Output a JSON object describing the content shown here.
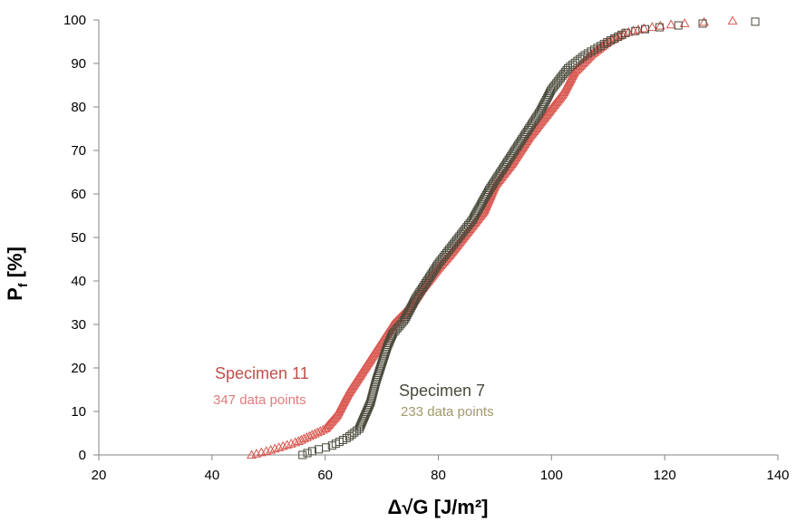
{
  "chart_data": {
    "type": "scatter",
    "xlabel": "Δ√G [J/m²]",
    "ylabel_main": "P",
    "ylabel_sub": "f",
    "ylabel_rest": " [%]",
    "xlim": [
      20,
      140
    ],
    "ylim": [
      0,
      100
    ],
    "xticks": [
      20,
      40,
      60,
      80,
      100,
      120,
      140
    ],
    "yticks": [
      0,
      10,
      20,
      30,
      40,
      50,
      60,
      70,
      80,
      90,
      100
    ],
    "grid": false,
    "legend": "none",
    "annotations": [
      {
        "name": "Specimen 11",
        "count": "347 data points",
        "name_color": "#c0504d",
        "count_color": "#e07c7c"
      },
      {
        "name": "Specimen 7",
        "count": "233 data points",
        "name_color": "#4a4a3c",
        "count_color": "#a09a6a"
      }
    ],
    "series": [
      {
        "label": "Specimen 11",
        "marker": "triangle",
        "color": "#d9574f",
        "n_points": 347,
        "cdf_anchors": [
          [
            47,
            0
          ],
          [
            50,
            1
          ],
          [
            55,
            3
          ],
          [
            60,
            6
          ],
          [
            62,
            9
          ],
          [
            64,
            14
          ],
          [
            66,
            18
          ],
          [
            68,
            22
          ],
          [
            70,
            26
          ],
          [
            72,
            30
          ],
          [
            75,
            34
          ],
          [
            77,
            38
          ],
          [
            80,
            43
          ],
          [
            82,
            46
          ],
          [
            85,
            51
          ],
          [
            88,
            56
          ],
          [
            90,
            62
          ],
          [
            93,
            67
          ],
          [
            96,
            73
          ],
          [
            99,
            78
          ],
          [
            102,
            83
          ],
          [
            104,
            88
          ],
          [
            107,
            92
          ],
          [
            110,
            95
          ],
          [
            113,
            97
          ],
          [
            116,
            98
          ],
          [
            120,
            98.8
          ],
          [
            125,
            99.4
          ],
          [
            132,
            99.8
          ]
        ]
      },
      {
        "label": "Specimen 7",
        "marker": "square",
        "color": "#4a4a3c",
        "n_points": 233,
        "cdf_anchors": [
          [
            56,
            0
          ],
          [
            58,
            1
          ],
          [
            61,
            2
          ],
          [
            64,
            4
          ],
          [
            66,
            6
          ],
          [
            67,
            9
          ],
          [
            68,
            12
          ],
          [
            69,
            17
          ],
          [
            70,
            21
          ],
          [
            71,
            25
          ],
          [
            72,
            28
          ],
          [
            74,
            31
          ],
          [
            76,
            36
          ],
          [
            78,
            40
          ],
          [
            80,
            44
          ],
          [
            83,
            49
          ],
          [
            86,
            54
          ],
          [
            89,
            61
          ],
          [
            92,
            67
          ],
          [
            95,
            73
          ],
          [
            98,
            79
          ],
          [
            100,
            84
          ],
          [
            103,
            89
          ],
          [
            106,
            92
          ],
          [
            110,
            95
          ],
          [
            113,
            97
          ],
          [
            117,
            98
          ],
          [
            121,
            98.6
          ],
          [
            125,
            99
          ],
          [
            129,
            99.4
          ],
          [
            136,
            99.6
          ]
        ]
      }
    ]
  }
}
